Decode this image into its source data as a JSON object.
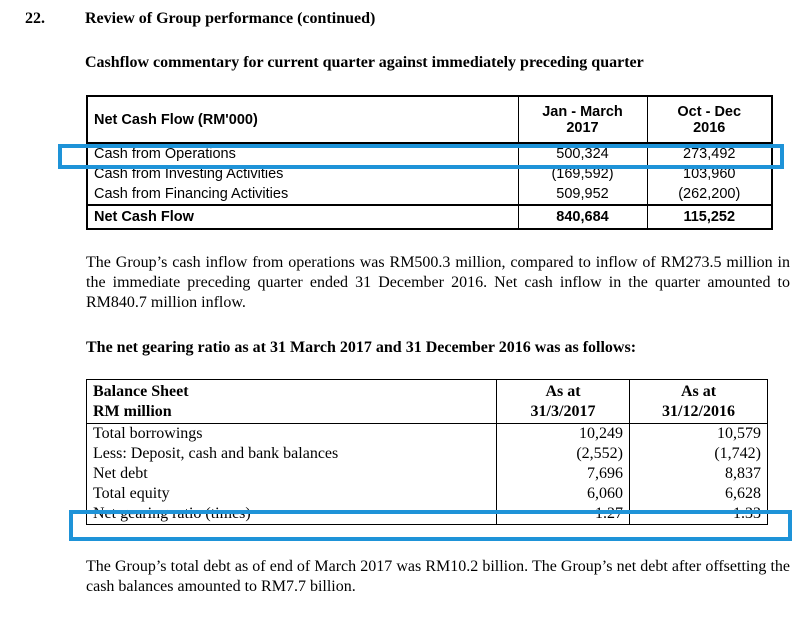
{
  "section": {
    "number": "22.",
    "title": "Review of Group performance (continued)"
  },
  "cashflow": {
    "heading": "Cashflow commentary for current quarter against immediately preceding quarter",
    "table": {
      "header": {
        "label": "Net Cash Flow (RM'000)",
        "col1_line1": "Jan - March",
        "col1_line2": "2017",
        "col2_line1": "Oct - Dec",
        "col2_line2": "2016"
      },
      "rows": [
        {
          "label": "Cash from Operations",
          "v1": "500,324",
          "v2": "273,492"
        },
        {
          "label": "Cash from Investing Activities",
          "v1": "(169,592)",
          "v2": "103,960"
        },
        {
          "label": "Cash from Financing Activities",
          "v1": "509,952",
          "v2": "(262,200)"
        }
      ],
      "total": {
        "label": "Net Cash Flow",
        "v1": "840,684",
        "v2": "115,252"
      }
    },
    "paragraph": "The Group’s cash inflow from operations was RM500.3 million, compared to inflow of RM273.5 million in the immediate preceding quarter ended 31 December 2016.  Net cash inflow in the quarter amounted to RM840.7 million inflow."
  },
  "gearing": {
    "heading": "The net gearing ratio as at 31 March 2017 and 31 December 2016 was as follows:",
    "table": {
      "header": {
        "label_line1": "Balance Sheet",
        "label_line2": "RM million",
        "col1_line1": "As at",
        "col1_line2": "31/3/2017",
        "col2_line1": "As at",
        "col2_line2": "31/12/2016"
      },
      "rows": [
        {
          "label": "Total borrowings",
          "v1": "10,249",
          "v2": "10,579"
        },
        {
          "label": "Less: Deposit, cash and bank balances",
          "v1": "(2,552)",
          "v2": "(1,742)"
        },
        {
          "label": "Net debt",
          "v1": "7,696",
          "v2": "8,837"
        },
        {
          "label": "Total equity",
          "v1": "6,060",
          "v2": "6,628"
        },
        {
          "label": "Net gearing ratio (times)",
          "v1": "1.27",
          "v2": "1.33"
        }
      ]
    },
    "paragraph": "The Group’s total debt as of end of March 2017 was RM10.2 billion. The Group’s net debt after offsetting the cash balances amounted to RM7.7 billion."
  },
  "highlight_color": "#1e93d8"
}
